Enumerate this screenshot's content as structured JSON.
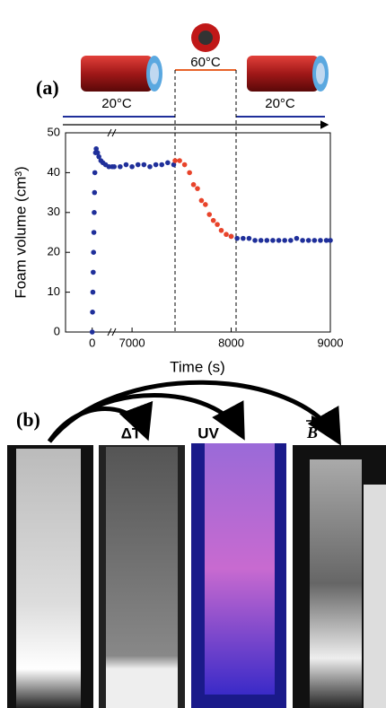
{
  "panel_a_label": "(a)",
  "panel_b_label": "(b)",
  "conditions": {
    "left": "20°C",
    "middle": "60°C",
    "right": "20°C"
  },
  "photo_labels": {
    "heat": "ΔT",
    "uv": "UV",
    "field": "B"
  },
  "chart_data": {
    "type": "scatter",
    "y_label": "Foam volume (cm³)",
    "x_label": "Time (s)",
    "xlim_segments": [
      [
        -400,
        300
      ],
      [
        6800,
        9000
      ]
    ],
    "xticks": [
      0,
      7000,
      8000,
      9000
    ],
    "ylim": [
      0,
      50
    ],
    "yticks": [
      0,
      10,
      20,
      30,
      40,
      50
    ],
    "series": [
      {
        "color": "#1f2f9a",
        "x": [
          0,
          5,
          10,
          15,
          20,
          25,
          30,
          35,
          40,
          50,
          60,
          80,
          100,
          130,
          160,
          200,
          250,
          300,
          6820,
          6880,
          6940,
          7000,
          7060,
          7120,
          7180,
          7240,
          7300,
          7360,
          7420,
          8000,
          8060,
          8120,
          8180,
          8240,
          8300,
          8360,
          8420,
          8480,
          8540,
          8600,
          8660,
          8720,
          8780,
          8840,
          8900,
          8960,
          9000
        ],
        "values": [
          0,
          5,
          10,
          15,
          20,
          25,
          30,
          35,
          40,
          45,
          46,
          45,
          44,
          43,
          42.5,
          42,
          41.5,
          41.5,
          41.5,
          41.5,
          42,
          41.5,
          42,
          42,
          41.5,
          42,
          42,
          42.5,
          42,
          24,
          23.5,
          23.5,
          23.5,
          23,
          23,
          23,
          23,
          23,
          23,
          23,
          23.5,
          23,
          23,
          23,
          23,
          23,
          23
        ]
      },
      {
        "color": "#e8432a",
        "x": [
          7434,
          7480,
          7530,
          7580,
          7620,
          7660,
          7700,
          7740,
          7780,
          7820,
          7860,
          7900,
          7950,
          8000
        ],
        "values": [
          43,
          43,
          42,
          40,
          37,
          36,
          33,
          32,
          29.5,
          28,
          27,
          25.5,
          24.5,
          24
        ]
      }
    ]
  }
}
